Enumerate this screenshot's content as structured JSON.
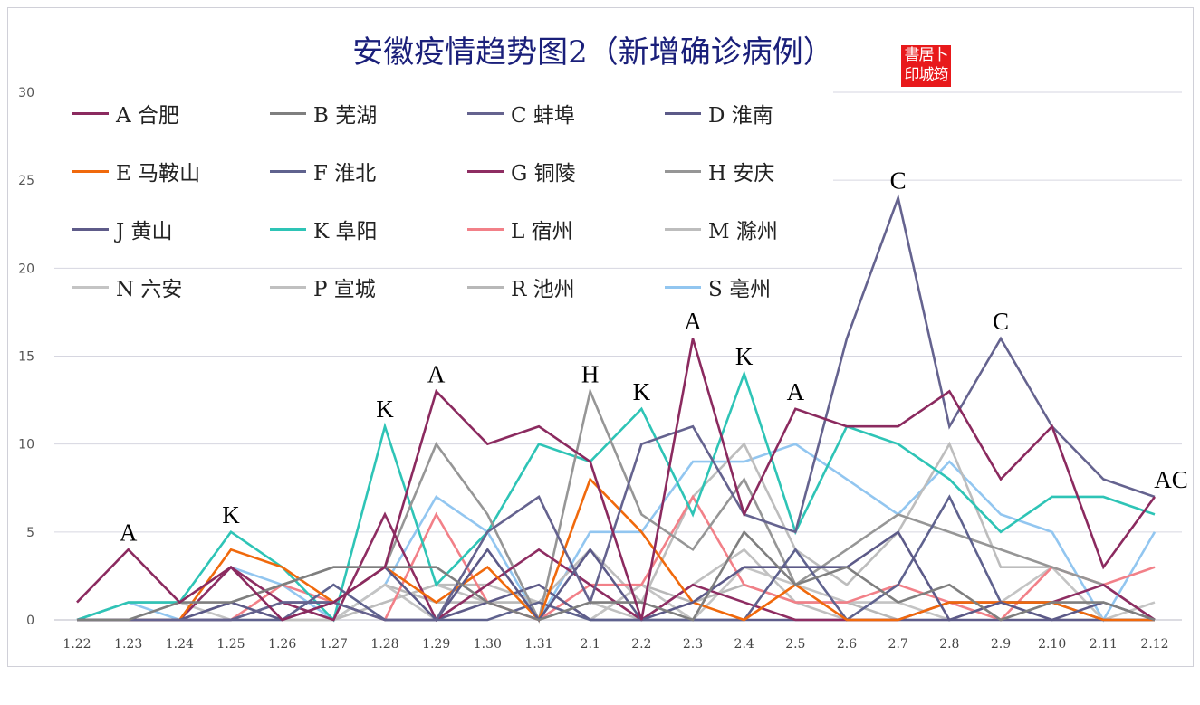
{
  "chart_data": {
    "type": "line",
    "title": "安徽疫情趋势图2（新增确诊病例）",
    "ylim": [
      0,
      30
    ],
    "yticks": [
      "0",
      "5",
      "10",
      "15",
      "20",
      "25",
      "30"
    ],
    "grid": true,
    "legend_position": "top-left",
    "categories": [
      "1.22",
      "1.23",
      "1.24",
      "1.25",
      "1.26",
      "1.27",
      "1.28",
      "1.29",
      "1.30",
      "1.31",
      "2.1",
      "2.2",
      "2.3",
      "2.4",
      "2.5",
      "2.6",
      "2.7",
      "2.8",
      "2.9",
      "2.10",
      "2.11",
      "2.12"
    ],
    "series": [
      {
        "name": "A 合肥",
        "color": "#8b2a5f",
        "values": [
          1,
          4,
          1,
          3,
          0,
          1,
          3,
          13,
          10,
          11,
          9,
          0,
          16,
          6,
          12,
          11,
          11,
          13,
          8,
          11,
          3,
          7
        ]
      },
      {
        "name": "B 芜湖",
        "color": "#7f7f7f",
        "values": [
          0,
          0,
          1,
          1,
          2,
          3,
          3,
          3,
          1,
          0,
          1,
          1,
          0,
          5,
          2,
          3,
          1,
          2,
          0,
          1,
          1,
          0
        ]
      },
      {
        "name": "C 蚌埠",
        "color": "#65638f",
        "values": [
          0,
          0,
          0,
          0,
          1,
          1,
          0,
          0,
          5,
          7,
          1,
          10,
          11,
          6,
          5,
          16,
          24,
          11,
          16,
          11,
          8,
          7
        ]
      },
      {
        "name": "D 淮南",
        "color": "#5c5a88",
        "values": [
          0,
          0,
          0,
          1,
          0,
          1,
          3,
          0,
          4,
          0,
          4,
          0,
          1,
          3,
          3,
          3,
          5,
          0,
          1,
          0,
          1,
          0
        ]
      },
      {
        "name": "E 马鞍山",
        "color": "#f0690c",
        "values": [
          0,
          0,
          0,
          4,
          3,
          1,
          3,
          1,
          3,
          0,
          8,
          5,
          1,
          0,
          2,
          0,
          0,
          1,
          1,
          1,
          0,
          0
        ]
      },
      {
        "name": "F 淮北",
        "color": "#5f628e",
        "values": [
          0,
          0,
          0,
          0,
          0,
          2,
          0,
          0,
          0,
          1,
          0,
          0,
          0,
          0,
          4,
          0,
          2,
          7,
          1,
          1,
          0,
          0
        ]
      },
      {
        "name": "G 铜陵",
        "color": "#8e2d62",
        "values": [
          0,
          0,
          0,
          3,
          1,
          0,
          6,
          0,
          2,
          4,
          2,
          0,
          2,
          1,
          0,
          0,
          0,
          1,
          1,
          1,
          2,
          0
        ]
      },
      {
        "name": "H 安庆",
        "color": "#969696",
        "values": [
          0,
          0,
          0,
          1,
          2,
          3,
          3,
          10,
          6,
          0,
          13,
          6,
          4,
          8,
          2,
          4,
          6,
          5,
          4,
          3,
          2,
          0
        ]
      },
      {
        "name": "J 黄山",
        "color": "#5e5b89",
        "values": [
          0,
          0,
          0,
          0,
          1,
          1,
          0,
          0,
          1,
          2,
          0,
          0,
          0,
          0,
          0,
          0,
          0,
          0,
          0,
          0,
          0,
          0
        ]
      },
      {
        "name": "K 阜阳",
        "color": "#2ec4b6",
        "values": [
          0,
          1,
          1,
          5,
          3,
          0,
          11,
          2,
          5,
          10,
          9,
          12,
          6,
          14,
          5,
          11,
          10,
          8,
          5,
          7,
          7,
          6
        ]
      },
      {
        "name": "L 宿州",
        "color": "#f28088",
        "values": [
          0,
          0,
          0,
          0,
          2,
          1,
          0,
          6,
          1,
          0,
          2,
          2,
          7,
          2,
          1,
          1,
          2,
          1,
          0,
          3,
          2,
          3
        ]
      },
      {
        "name": "M 滁州",
        "color": "#bdbdbd",
        "values": [
          0,
          1,
          1,
          3,
          1,
          0,
          1,
          2,
          2,
          1,
          4,
          1,
          7,
          10,
          4,
          2,
          5,
          10,
          3,
          3,
          2,
          0
        ]
      },
      {
        "name": "N 六安",
        "color": "#c4c4c4",
        "values": [
          0,
          0,
          1,
          0,
          1,
          0,
          2,
          0,
          1,
          2,
          0,
          2,
          0,
          3,
          2,
          1,
          1,
          0,
          1,
          3,
          0,
          1
        ]
      },
      {
        "name": "P 宣城",
        "color": "#c0c0c0",
        "values": [
          0,
          0,
          0,
          1,
          0,
          0,
          1,
          2,
          1,
          0,
          1,
          0,
          2,
          4,
          1,
          0,
          0,
          0,
          1,
          0,
          0,
          0
        ]
      },
      {
        "name": "R 池州",
        "color": "#b8b8b8",
        "values": [
          0,
          0,
          0,
          0,
          0,
          0,
          2,
          1,
          1,
          1,
          0,
          2,
          1,
          2,
          1,
          1,
          0,
          1,
          0,
          1,
          0,
          0
        ]
      },
      {
        "name": "S 亳州",
        "color": "#92c6f0",
        "values": [
          0,
          1,
          0,
          3,
          2,
          0,
          2,
          7,
          5,
          0,
          5,
          5,
          9,
          9,
          10,
          8,
          6,
          9,
          6,
          5,
          0,
          5
        ]
      }
    ],
    "annotations": [
      {
        "category": "1.23",
        "value": 4,
        "text": "A"
      },
      {
        "category": "1.25",
        "value": 5,
        "text": "K"
      },
      {
        "category": "1.28",
        "value": 11,
        "text": "K"
      },
      {
        "category": "1.29",
        "value": 13,
        "text": "A"
      },
      {
        "category": "2.1",
        "value": 13,
        "text": "H"
      },
      {
        "category": "2.2",
        "value": 12,
        "text": "K"
      },
      {
        "category": "2.3",
        "value": 16,
        "text": "A"
      },
      {
        "category": "2.4",
        "value": 14,
        "text": "K"
      },
      {
        "category": "2.5",
        "value": 12,
        "text": "A"
      },
      {
        "category": "2.7",
        "value": 24,
        "text": "C"
      },
      {
        "category": "2.9",
        "value": 16,
        "text": "C"
      },
      {
        "category": "2.12",
        "value": 7,
        "text": "AC"
      }
    ]
  },
  "seal_text": "書居卜 印城筠"
}
